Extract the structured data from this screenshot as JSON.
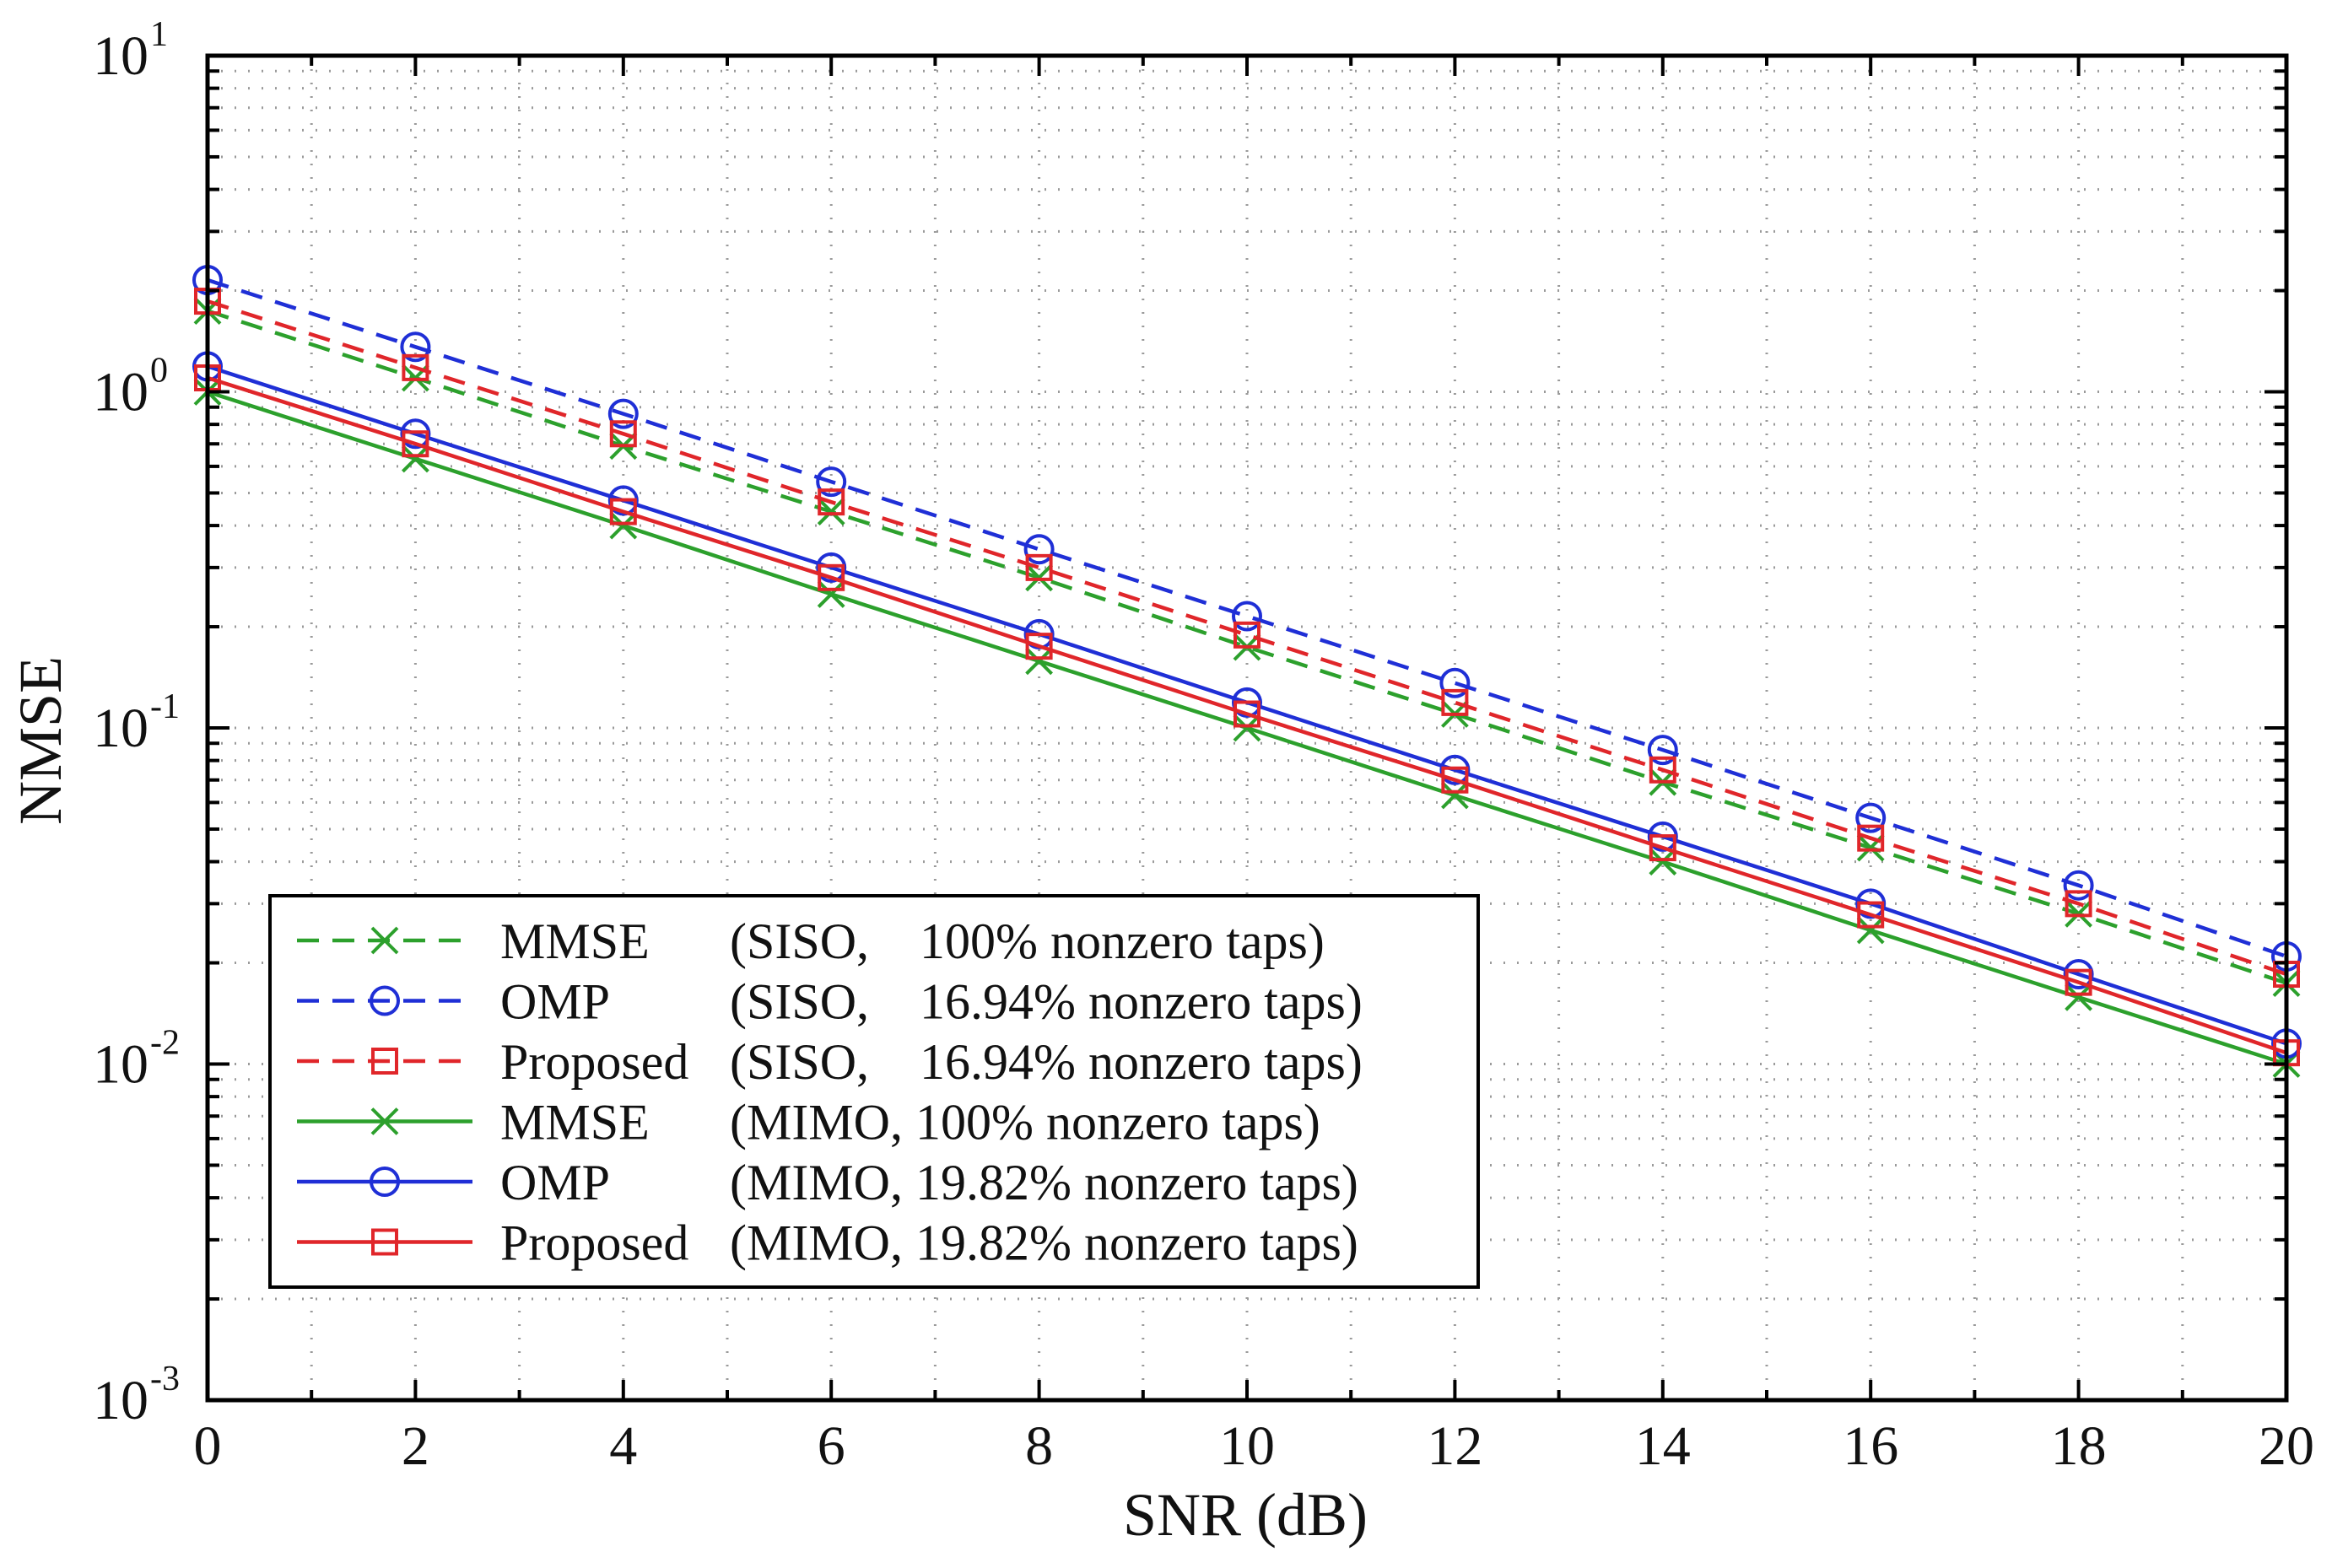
{
  "chart_data": {
    "type": "line",
    "y_scale": "log",
    "xlabel": "SNR (dB)",
    "ylabel": "NMSE",
    "xlim": [
      0,
      20
    ],
    "ylim": [
      0.001,
      10
    ],
    "grid": true,
    "legend_position": "lower-left",
    "x": [
      0,
      2,
      4,
      6,
      8,
      10,
      12,
      14,
      16,
      18,
      20
    ],
    "x_tick_labels": [
      "0",
      "2",
      "4",
      "6",
      "8",
      "10",
      "12",
      "14",
      "16",
      "18",
      "20"
    ],
    "y_tick_labels": [
      {
        "base": "10",
        "exp": "1"
      },
      {
        "base": "10",
        "exp": "0"
      },
      {
        "base": "10",
        "exp": "-1"
      },
      {
        "base": "10",
        "exp": "-2"
      },
      {
        "base": "10",
        "exp": "-3"
      }
    ],
    "series": [
      {
        "method": "MMSE",
        "config": "(SISO,    100% nonzero taps)",
        "color": "#2ca02c",
        "dash": "dashed",
        "marker": "x",
        "values": [
          1.74,
          1.1,
          0.69,
          0.44,
          0.28,
          0.174,
          0.11,
          0.069,
          0.044,
          0.028,
          0.0174
        ]
      },
      {
        "method": "OMP",
        "config": "(SISO,    16.94% nonzero taps)",
        "color": "#1f2fd6",
        "dash": "dashed",
        "marker": "circle",
        "values": [
          2.15,
          1.36,
          0.86,
          0.54,
          0.34,
          0.215,
          0.136,
          0.086,
          0.054,
          0.034,
          0.0209
        ]
      },
      {
        "method": "Proposed",
        "config": "(SISO,    16.94% nonzero taps)",
        "color": "#e0262a",
        "dash": "dashed",
        "marker": "square",
        "values": [
          1.86,
          1.18,
          0.75,
          0.47,
          0.3,
          0.189,
          0.119,
          0.075,
          0.047,
          0.03,
          0.0185
        ]
      },
      {
        "method": "MMSE",
        "config": "(MIMO, 100% nonzero taps)",
        "color": "#2ca02c",
        "dash": "solid",
        "marker": "x",
        "values": [
          1.0,
          0.632,
          0.4,
          0.25,
          0.158,
          0.1,
          0.063,
          0.04,
          0.025,
          0.0158,
          0.01
        ]
      },
      {
        "method": "OMP",
        "config": "(MIMO, 19.82% nonzero taps)",
        "color": "#1f2fd6",
        "dash": "solid",
        "marker": "circle",
        "values": [
          1.19,
          0.75,
          0.475,
          0.3,
          0.19,
          0.119,
          0.075,
          0.0475,
          0.03,
          0.0185,
          0.0115
        ]
      },
      {
        "method": "Proposed",
        "config": "(MIMO, 19.82% nonzero taps)",
        "color": "#e0262a",
        "dash": "solid",
        "marker": "square",
        "values": [
          1.1,
          0.7,
          0.44,
          0.28,
          0.175,
          0.11,
          0.07,
          0.044,
          0.0278,
          0.0175,
          0.0108
        ]
      }
    ]
  }
}
